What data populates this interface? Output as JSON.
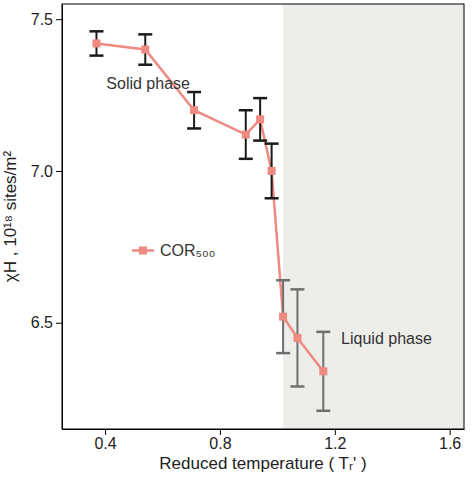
{
  "chart_data": {
    "type": "line",
    "x_label": "Reduced temperature ( Tᵣ' )",
    "y_label": "χH ,  10¹⁸ sites/m²",
    "x": [
      0.37,
      0.54,
      0.71,
      0.89,
      0.94,
      0.98,
      1.02,
      1.07,
      1.16
    ],
    "series": [
      {
        "name": "COR₅₀₀",
        "color": "#ee8a80",
        "marker": "square",
        "values": [
          7.42,
          7.4,
          7.2,
          7.12,
          7.17,
          7.0,
          6.52,
          6.45,
          6.34
        ],
        "errors": [
          0.04,
          0.05,
          0.06,
          0.08,
          0.07,
          0.09,
          0.12,
          0.16,
          0.13
        ]
      }
    ],
    "xlim": [
      0.25,
      1.65
    ],
    "xticks": [
      0.4,
      0.8,
      1.2,
      1.6
    ],
    "ylim": [
      6.15,
      7.55
    ],
    "yticks": [
      6.5,
      7.0,
      7.5
    ],
    "regions": [
      {
        "x0": 1.02,
        "x1": 1.65,
        "color": "#ededea"
      }
    ],
    "annotations": [
      {
        "text": "Solid phase",
        "x": 0.55,
        "y": 7.27
      },
      {
        "text": "Liquid phase",
        "x": 1.38,
        "y": 6.43
      }
    ],
    "legend": "left"
  }
}
